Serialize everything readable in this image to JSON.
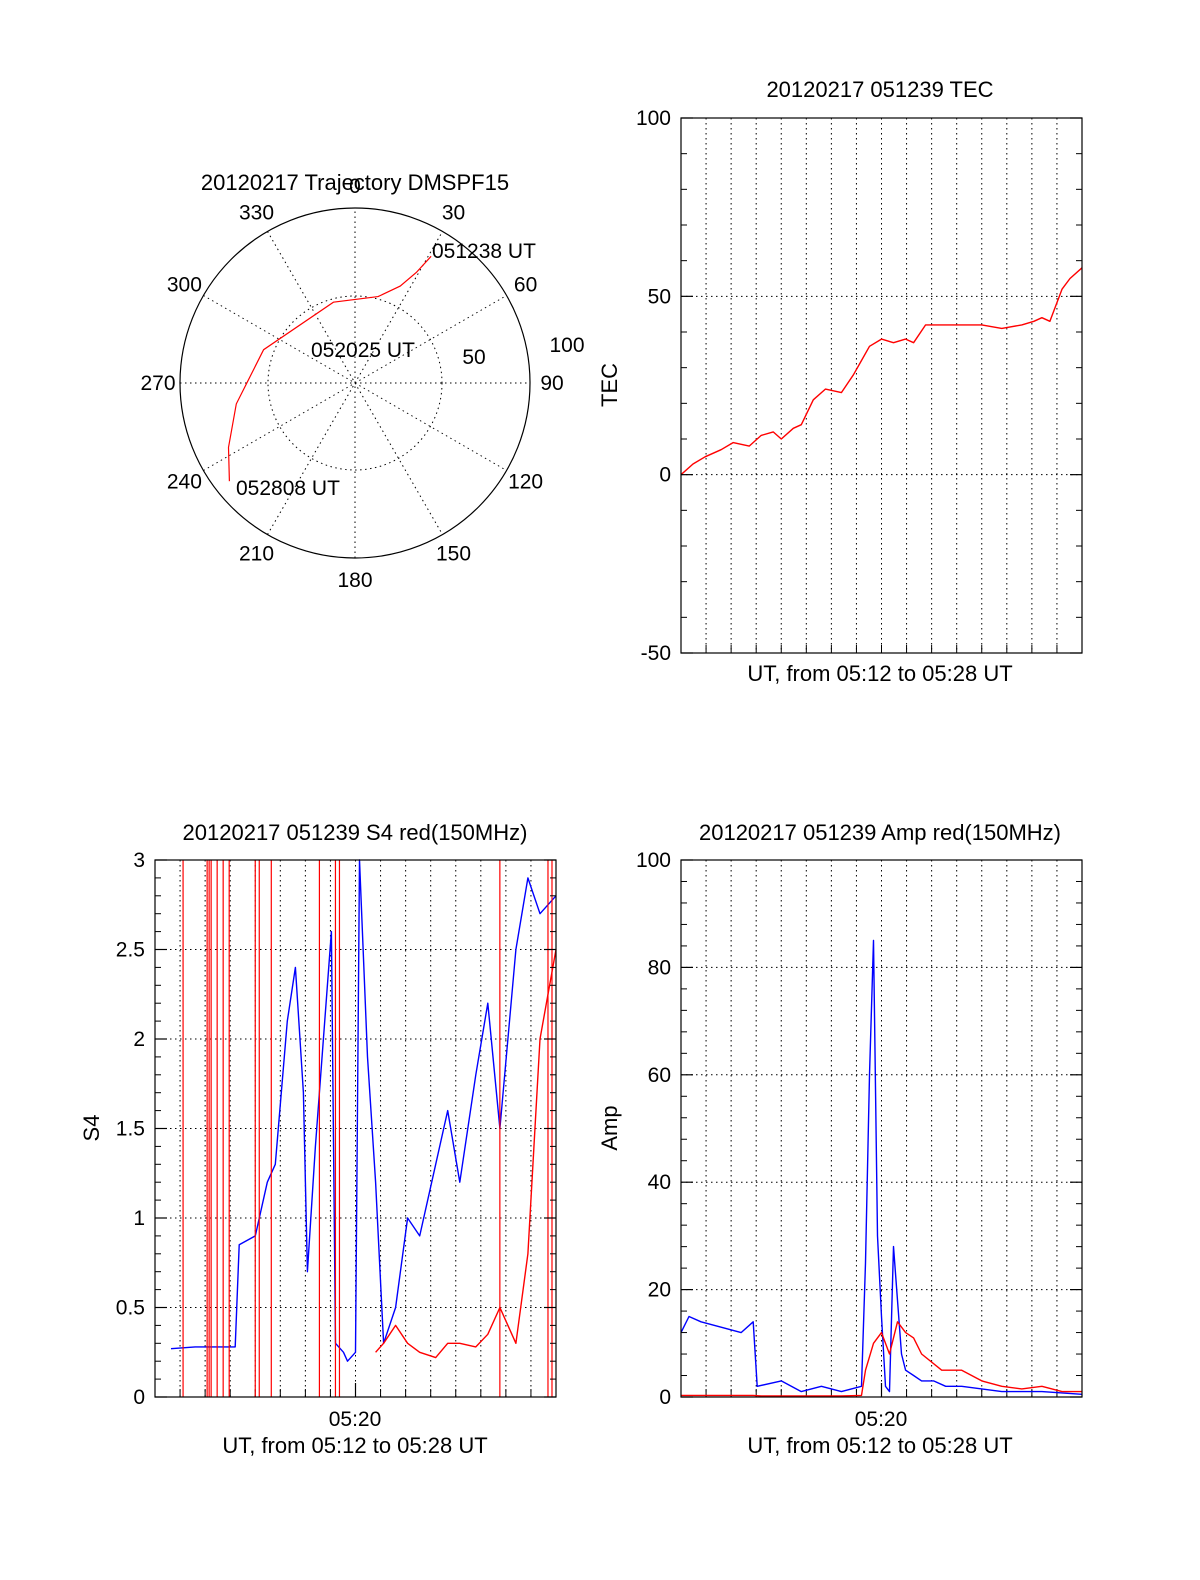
{
  "colors": {
    "red": "#ff0000",
    "blue": "#0000ff",
    "axis": "#000000"
  },
  "chart_data": [
    {
      "type": "polar",
      "title": "20120217 Trajectory DMSPF15",
      "angle_labels": [
        "0",
        "30",
        "60",
        "90",
        "120",
        "150",
        "180",
        "210",
        "240",
        "270",
        "300",
        "330"
      ],
      "radial_labels": [
        "50",
        "100"
      ],
      "trajectory": {
        "color": "#ff0000",
        "points": [
          {
            "az": 232,
            "el": 8
          },
          {
            "az": 243,
            "el": 17
          },
          {
            "az": 260,
            "el": 28
          },
          {
            "az": 290,
            "el": 40
          },
          {
            "az": 345,
            "el": 47
          },
          {
            "az": 15,
            "el": 44
          },
          {
            "az": 25,
            "el": 35
          },
          {
            "az": 29,
            "el": 25
          },
          {
            "az": 31,
            "el": 14
          }
        ]
      },
      "annotations": [
        "051238 UT",
        "052025 UT",
        "052808 UT"
      ]
    },
    {
      "type": "line",
      "title": "20120217 051239 TEC",
      "xlabel": "UT, from 05:12 to 05:28 UT",
      "ylabel": "TEC",
      "ylim": [
        -50,
        100
      ],
      "yticks": [
        "-50",
        "0",
        "50",
        "100"
      ],
      "series": [
        {
          "color": "#ff0000",
          "t": [
            0.0,
            0.03,
            0.06,
            0.1,
            0.13,
            0.17,
            0.2,
            0.23,
            0.25,
            0.28,
            0.3,
            0.33,
            0.36,
            0.4,
            0.43,
            0.45,
            0.47,
            0.5,
            0.53,
            0.56,
            0.58,
            0.61,
            0.63,
            0.66,
            0.7,
            0.75,
            0.8,
            0.85,
            0.88,
            0.9,
            0.92,
            0.95,
            0.97,
            1.0
          ],
          "values": [
            0,
            3,
            5,
            7,
            9,
            8,
            11,
            12,
            10,
            13,
            14,
            21,
            24,
            23,
            28,
            32,
            36,
            38,
            37,
            38,
            37,
            42,
            42,
            42,
            42,
            42,
            41,
            42,
            43,
            44,
            43,
            52,
            55,
            58
          ]
        }
      ]
    },
    {
      "type": "line",
      "title": "20120217 051239 S4 red(150MHz)",
      "xlabel": "UT, from 05:12 to 05:28 UT",
      "ylabel": "S4",
      "xtick": "05:20",
      "ylim": [
        0,
        3
      ],
      "yticks": [
        "0",
        "0.5",
        "1",
        "1.5",
        "2",
        "2.5",
        "3"
      ],
      "series": [
        {
          "color": "#0000ff",
          "t": [
            0.04,
            0.1,
            0.16,
            0.2,
            0.21,
            0.25,
            0.28,
            0.3,
            0.33,
            0.35,
            0.37,
            0.38,
            0.4,
            0.42,
            0.44,
            0.45,
            0.47,
            0.48,
            0.5,
            0.51,
            0.53,
            0.55,
            0.57,
            0.6,
            0.63,
            0.66,
            0.7,
            0.73,
            0.76,
            0.8,
            0.83,
            0.86,
            0.9,
            0.93,
            0.96,
            1.0
          ],
          "values": [
            0.27,
            0.28,
            0.28,
            0.28,
            0.85,
            0.9,
            1.2,
            1.3,
            2.1,
            2.4,
            1.7,
            0.7,
            1.4,
            2.0,
            2.6,
            0.3,
            0.25,
            0.2,
            0.25,
            3.0,
            1.9,
            1.2,
            0.3,
            0.5,
            1.0,
            0.9,
            1.3,
            1.6,
            1.2,
            1.8,
            2.2,
            1.5,
            2.5,
            2.9,
            2.7,
            2.8
          ]
        },
        {
          "color": "#ff0000",
          "t": [
            0.55,
            0.57,
            0.6,
            0.63,
            0.66,
            0.7,
            0.73,
            0.76,
            0.8,
            0.83,
            0.86,
            0.9,
            0.93,
            0.96,
            1.0
          ],
          "values": [
            0.25,
            0.3,
            0.4,
            0.3,
            0.25,
            0.22,
            0.3,
            0.3,
            0.28,
            0.35,
            0.5,
            0.3,
            0.8,
            2.0,
            2.5
          ]
        }
      ],
      "spikes_red_t": [
        0.07,
        0.13,
        0.135,
        0.14,
        0.155,
        0.17,
        0.185,
        0.25,
        0.26,
        0.29,
        0.41,
        0.45,
        0.46,
        0.86,
        0.98,
        0.99
      ]
    },
    {
      "type": "line",
      "title": "20120217 051239 Amp red(150MHz)",
      "xlabel": "UT, from 05:12 to 05:28 UT",
      "ylabel": "Amp",
      "xtick": "05:20",
      "ylim": [
        0,
        100
      ],
      "yticks": [
        "0",
        "20",
        "40",
        "60",
        "80",
        "100"
      ],
      "series": [
        {
          "color": "#0000ff",
          "t": [
            0.0,
            0.02,
            0.05,
            0.1,
            0.15,
            0.18,
            0.19,
            0.25,
            0.3,
            0.35,
            0.4,
            0.45,
            0.46,
            0.47,
            0.48,
            0.49,
            0.5,
            0.51,
            0.52,
            0.53,
            0.54,
            0.55,
            0.56,
            0.58,
            0.6,
            0.63,
            0.66,
            0.7,
            0.8,
            0.9,
            1.0
          ],
          "values": [
            12,
            15,
            14,
            13,
            12,
            14,
            2,
            3,
            1,
            2,
            1,
            2,
            25,
            60,
            85,
            30,
            15,
            2,
            1,
            28,
            18,
            8,
            5,
            4,
            3,
            3,
            2,
            2,
            1,
            1,
            0.5
          ]
        },
        {
          "color": "#ff0000",
          "t": [
            0.0,
            0.18,
            0.2,
            0.3,
            0.4,
            0.45,
            0.46,
            0.48,
            0.5,
            0.52,
            0.54,
            0.56,
            0.58,
            0.6,
            0.65,
            0.7,
            0.75,
            0.8,
            0.85,
            0.9,
            0.95,
            1.0
          ],
          "values": [
            0.3,
            0.3,
            0.2,
            0.2,
            0.2,
            0.3,
            5,
            10,
            12,
            8,
            14,
            12,
            11,
            8,
            5,
            5,
            3,
            2,
            1.5,
            2,
            1,
            1
          ]
        }
      ]
    }
  ]
}
